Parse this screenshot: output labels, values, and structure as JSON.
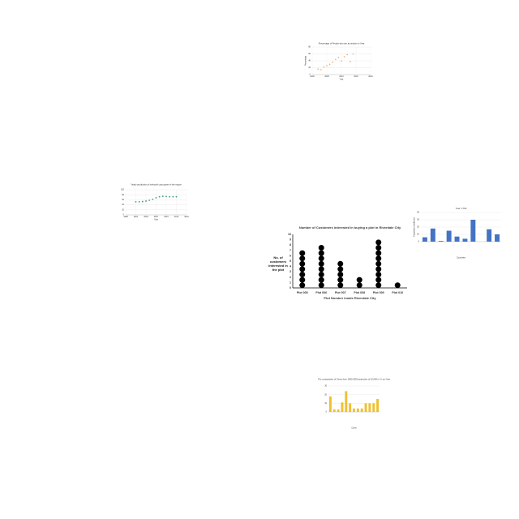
{
  "chart_data": [
    {
      "type": "scatter",
      "title": "Percentage of People who are at random in Year",
      "xlabel": "Year",
      "ylabel": "Percentage",
      "x": [
        2002,
        2003,
        2004,
        2005,
        2006,
        2007,
        2008,
        2009,
        2010,
        2011,
        2012,
        2013,
        2014
      ],
      "values": [
        16,
        14,
        22,
        26,
        30,
        36,
        44,
        50,
        40,
        52,
        58,
        38,
        60
      ],
      "xlim": [
        2000,
        2020
      ],
      "xticks": [
        2000,
        2005,
        2010,
        2015,
        2020
      ],
      "ylim": [
        0,
        80
      ],
      "yticks": [
        0,
        20,
        40,
        60,
        80
      ],
      "color": "#f0a868",
      "grid": true
    },
    {
      "type": "scatter",
      "title": "Yearly production of selected crop grown in the region",
      "xlabel": "Year",
      "x": [
        2001,
        2002,
        2003,
        2004,
        2005,
        2006,
        2007,
        2008,
        2009,
        2010,
        2011,
        2012,
        2013
      ],
      "values": [
        52,
        52,
        53,
        55,
        58,
        62,
        68,
        72,
        74,
        73,
        72,
        72,
        72
      ],
      "xlim": [
        1998,
        2016
      ],
      "xticks": [
        1998,
        2001,
        2004,
        2007,
        2010,
        2013,
        2016
      ],
      "ylim": [
        0,
        100
      ],
      "yticks": [
        0,
        20,
        40,
        60,
        80,
        100
      ],
      "color": "#3a9a7a",
      "grid": true
    },
    {
      "type": "dotplot",
      "title": "Number of Customers interested in buying a plot in Riverdale City",
      "xlabel": "Plot Number inside Riverdale City",
      "ylabel": "No. of customers interested in the plot",
      "categories": [
        "Plot 005",
        "Plot 006",
        "Plot 007",
        "Plot 008",
        "Plot 009",
        "Plot 010"
      ],
      "values": [
        7,
        8,
        5,
        2,
        9,
        1
      ],
      "ylim": [
        0,
        10
      ],
      "yticks": [
        0,
        1,
        2,
        3,
        4,
        5,
        6,
        7,
        8,
        9,
        10
      ],
      "color": "#000000",
      "grid": false
    },
    {
      "type": "bar",
      "title": "Year: 1700",
      "xlabel": "Countries",
      "ylabel": "Population (millions)",
      "categories": [
        null,
        null,
        null,
        null,
        null,
        null,
        null,
        null,
        null,
        null
      ],
      "values": [
        6,
        18,
        1,
        15,
        7,
        4,
        30,
        0,
        17,
        10
      ],
      "ylim": [
        0,
        40
      ],
      "yticks": [
        0,
        10,
        20,
        30,
        40
      ],
      "color": "#4472c4",
      "grid": true
    },
    {
      "type": "bar",
      "title": "The composition of Crime from 1990-2000 projection of 10,000 in Yr-on-Year",
      "xlabel": "Crime",
      "categories": [
        null,
        null,
        null,
        null,
        null,
        null,
        null,
        null,
        null,
        null,
        null,
        null,
        null
      ],
      "values": [
        18,
        3,
        3,
        11,
        24,
        10,
        4,
        4,
        4,
        10,
        10,
        10,
        15
      ],
      "ylim": [
        0,
        30
      ],
      "yticks": [
        0,
        10,
        20,
        30
      ],
      "color": "#f0c030",
      "grid": true
    }
  ]
}
